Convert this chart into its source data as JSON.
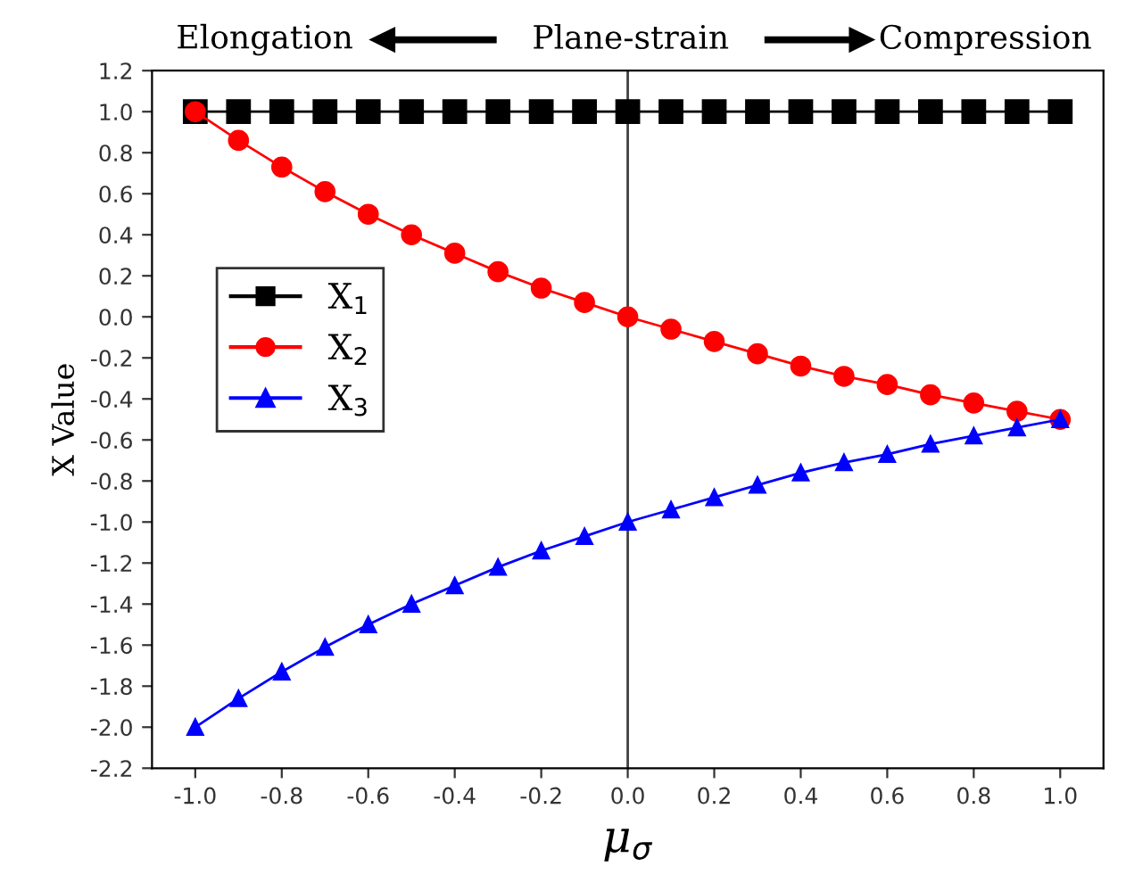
{
  "chart_data": {
    "type": "line",
    "xlabel": "μ$_{σ}$",
    "ylabel": "X Value",
    "annotations": [
      "Elongation",
      "Plane-strain",
      "Compression"
    ],
    "x": [
      -1.0,
      -0.9,
      -0.8,
      -0.7,
      -0.6,
      -0.5,
      -0.4,
      -0.3,
      -0.2,
      -0.1,
      0.0,
      0.1,
      0.2,
      0.3,
      0.4,
      0.5,
      0.6,
      0.7,
      0.8,
      0.9,
      1.0
    ],
    "series": [
      {
        "name": "X$_{1}$",
        "color": "#000000",
        "marker": "square",
        "values": [
          1.0,
          1.0,
          1.0,
          1.0,
          1.0,
          1.0,
          1.0,
          1.0,
          1.0,
          1.0,
          1.0,
          1.0,
          1.0,
          1.0,
          1.0,
          1.0,
          1.0,
          1.0,
          1.0,
          1.0,
          1.0
        ]
      },
      {
        "name": "X$_{2}$",
        "color": "#ff0000",
        "marker": "circle",
        "values": [
          1.0,
          0.86,
          0.73,
          0.61,
          0.5,
          0.4,
          0.31,
          0.22,
          0.14,
          0.07,
          0.0,
          -0.06,
          -0.12,
          -0.18,
          -0.24,
          -0.29,
          -0.33,
          -0.38,
          -0.42,
          -0.46,
          -0.5
        ]
      },
      {
        "name": "X$_{3}$",
        "color": "#0000ff",
        "marker": "triangle",
        "values": [
          -2.0,
          -1.86,
          -1.73,
          -1.61,
          -1.5,
          -1.4,
          -1.31,
          -1.22,
          -1.14,
          -1.07,
          -1.0,
          -0.94,
          -0.88,
          -0.82,
          -0.76,
          -0.71,
          -0.67,
          -0.62,
          -0.58,
          -0.54,
          -0.5
        ]
      }
    ],
    "xlim": [
      -1.1,
      1.1
    ],
    "ylim": [
      -2.2,
      1.2
    ],
    "xticks": [
      {
        "value": -1.0,
        "label": "-1.0"
      },
      {
        "value": -0.8,
        "label": "-0.8"
      },
      {
        "value": -0.6,
        "label": "-0.6"
      },
      {
        "value": -0.4,
        "label": "-0.4"
      },
      {
        "value": -0.2,
        "label": "-0.2"
      },
      {
        "value": 0.0,
        "label": "0.0"
      },
      {
        "value": 0.2,
        "label": "0.2"
      },
      {
        "value": 0.4,
        "label": "0.4"
      },
      {
        "value": 0.6,
        "label": "0.6"
      },
      {
        "value": 0.8,
        "label": "0.8"
      },
      {
        "value": 1.0,
        "label": "1.0"
      }
    ],
    "yticks": [
      {
        "value": 1.2,
        "label": "1.2"
      },
      {
        "value": 1.0,
        "label": "1.0"
      },
      {
        "value": 0.8,
        "label": "0.8"
      },
      {
        "value": 0.6,
        "label": "0.6"
      },
      {
        "value": 0.4,
        "label": "0.4"
      },
      {
        "value": 0.2,
        "label": "0.2"
      },
      {
        "value": 0.0,
        "label": "0.0"
      },
      {
        "value": -0.2,
        "label": "-0.2"
      },
      {
        "value": -0.4,
        "label": "-0.4"
      },
      {
        "value": -0.6,
        "label": "-0.6"
      },
      {
        "value": -0.8,
        "label": "-0.8"
      },
      {
        "value": -1.0,
        "label": "-1.0"
      },
      {
        "value": -1.2,
        "label": "-1.2"
      },
      {
        "value": -1.4,
        "label": "-1.4"
      },
      {
        "value": -1.6,
        "label": "-1.6"
      },
      {
        "value": -1.8,
        "label": "-1.8"
      },
      {
        "value": -2.0,
        "label": "-2.0"
      },
      {
        "value": -2.2,
        "label": "-2.2"
      }
    ],
    "ref_lines": [
      {
        "axis": "x",
        "value": 0.0,
        "color": "#404040"
      }
    ],
    "grid": false,
    "legend": "left",
    "line_style": "solid"
  }
}
